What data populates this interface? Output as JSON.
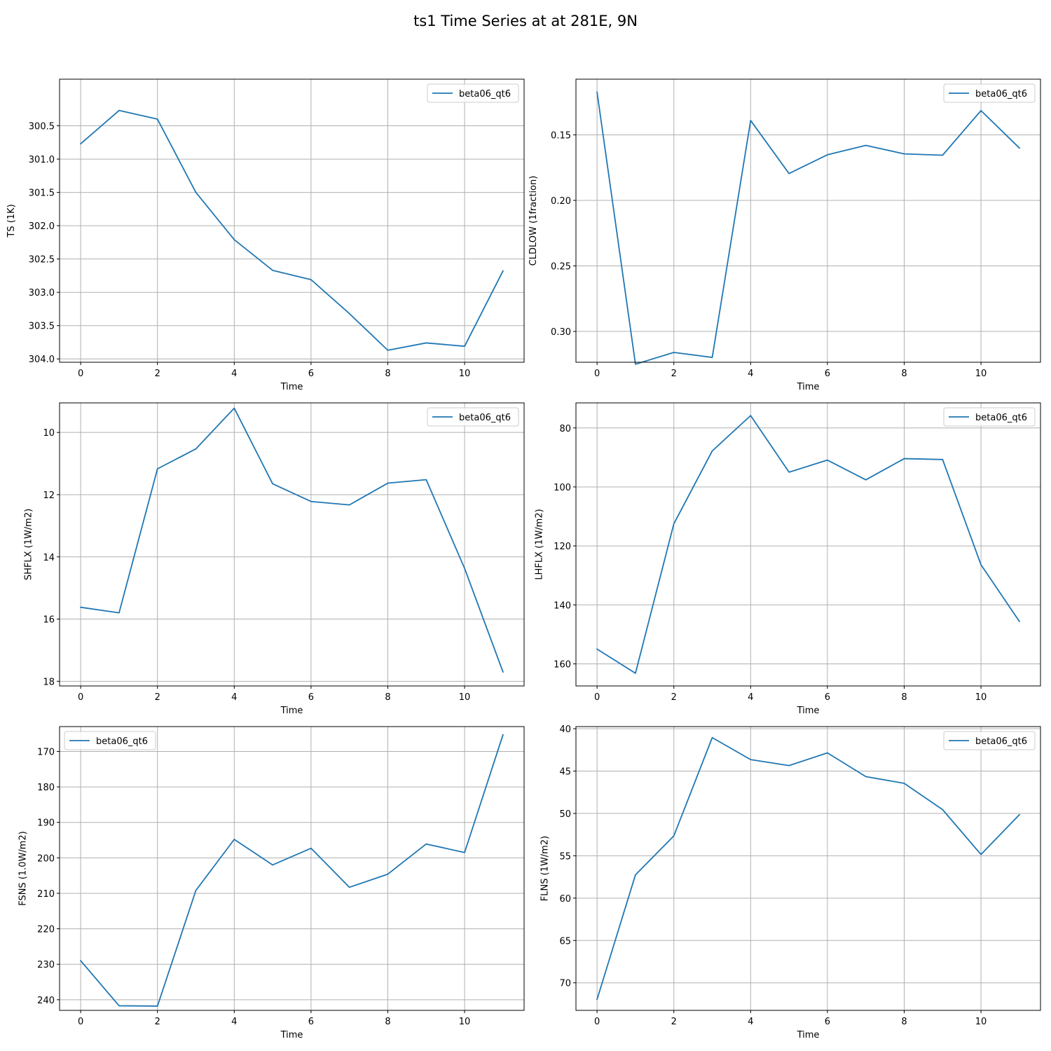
{
  "figure": {
    "title": "ts1 Time Series at at 281E, 9N"
  },
  "colors": {
    "series": "#1f77b4",
    "grid": "#b0b0b0"
  },
  "chart_data": [
    {
      "type": "line",
      "xlabel": "Time",
      "ylabel": "TS (1K)",
      "xlim": [
        -0.55,
        11.55
      ],
      "ylim": [
        304.05,
        299.8
      ],
      "y_inverted": true,
      "grid": true,
      "legend_position": "top-right",
      "xticks": [
        0,
        2,
        4,
        6,
        8,
        10
      ],
      "xtick_labels": [
        "0",
        "2",
        "4",
        "6",
        "8",
        "10"
      ],
      "yticks": [
        300.5,
        301.0,
        301.5,
        302.0,
        302.5,
        303.0,
        303.5,
        304.0
      ],
      "ytick_labels": [
        "300.5",
        "301.0",
        "301.5",
        "302.0",
        "302.5",
        "303.0",
        "303.5",
        "304.0"
      ],
      "series": [
        {
          "name": "beta06_qt6",
          "x": [
            0,
            1,
            2,
            3,
            4,
            5,
            6,
            7,
            8,
            9,
            10,
            11
          ],
          "values": [
            300.77,
            300.27,
            300.4,
            301.5,
            302.21,
            302.67,
            302.81,
            303.32,
            303.87,
            303.76,
            303.81,
            302.68
          ]
        }
      ]
    },
    {
      "type": "line",
      "xlabel": "Time",
      "ylabel": "CLDLOW (1fraction)",
      "xlim": [
        -0.55,
        11.55
      ],
      "ylim": [
        0.3235,
        0.1075
      ],
      "y_inverted": true,
      "grid": true,
      "legend_position": "top-right",
      "xticks": [
        0,
        2,
        4,
        6,
        8,
        10
      ],
      "xtick_labels": [
        "0",
        "2",
        "4",
        "6",
        "8",
        "10"
      ],
      "yticks": [
        0.15,
        0.2,
        0.25,
        0.3
      ],
      "ytick_labels": [
        "0.15",
        "0.20",
        "0.25",
        "0.30"
      ],
      "series": [
        {
          "name": "beta06_qt6",
          "x": [
            0,
            1,
            2,
            3,
            4,
            5,
            6,
            7,
            8,
            9,
            10,
            11
          ],
          "values": [
            0.1175,
            0.325,
            0.316,
            0.3198,
            0.139,
            0.1795,
            0.1652,
            0.158,
            0.1645,
            0.1655,
            0.1315,
            0.16
          ]
        }
      ]
    },
    {
      "type": "line",
      "xlabel": "Time",
      "ylabel": "SHFLX (1W/m2)",
      "xlim": [
        -0.55,
        11.55
      ],
      "ylim": [
        18.15,
        9.05
      ],
      "y_inverted": true,
      "grid": true,
      "legend_position": "top-right",
      "xticks": [
        0,
        2,
        4,
        6,
        8,
        10
      ],
      "xtick_labels": [
        "0",
        "2",
        "4",
        "6",
        "8",
        "10"
      ],
      "yticks": [
        10,
        12,
        14,
        16,
        18
      ],
      "ytick_labels": [
        "10",
        "12",
        "14",
        "16",
        "18"
      ],
      "series": [
        {
          "name": "beta06_qt6",
          "x": [
            0,
            1,
            2,
            3,
            4,
            5,
            6,
            7,
            8,
            9,
            10,
            11
          ],
          "values": [
            15.62,
            15.8,
            11.17,
            10.53,
            9.22,
            11.65,
            12.22,
            12.33,
            11.63,
            11.52,
            14.37,
            17.7
          ]
        }
      ]
    },
    {
      "type": "line",
      "xlabel": "Time",
      "ylabel": "LHFLX (1W/m2)",
      "xlim": [
        -0.55,
        11.55
      ],
      "ylim": [
        167.5,
        71.5
      ],
      "y_inverted": true,
      "grid": true,
      "legend_position": "top-right",
      "xticks": [
        0,
        2,
        4,
        6,
        8,
        10
      ],
      "xtick_labels": [
        "0",
        "2",
        "4",
        "6",
        "8",
        "10"
      ],
      "yticks": [
        80,
        100,
        120,
        140,
        160
      ],
      "ytick_labels": [
        "80",
        "100",
        "120",
        "140",
        "160"
      ],
      "series": [
        {
          "name": "beta06_qt6",
          "x": [
            0,
            1,
            2,
            3,
            4,
            5,
            6,
            7,
            8,
            9,
            10,
            11
          ],
          "values": [
            155.0,
            163.2,
            112.5,
            87.8,
            75.8,
            95.0,
            90.9,
            97.6,
            90.4,
            90.7,
            126.4,
            145.6
          ]
        }
      ]
    },
    {
      "type": "line",
      "xlabel": "Time",
      "ylabel": "FSNS (1.0W/m2)",
      "xlim": [
        -0.55,
        11.55
      ],
      "ylim": [
        243,
        163
      ],
      "y_inverted": true,
      "grid": true,
      "legend_position": "top-left",
      "xticks": [
        0,
        2,
        4,
        6,
        8,
        10
      ],
      "xtick_labels": [
        "0",
        "2",
        "4",
        "6",
        "8",
        "10"
      ],
      "yticks": [
        170,
        180,
        190,
        200,
        210,
        220,
        230,
        240
      ],
      "ytick_labels": [
        "170",
        "180",
        "190",
        "200",
        "210",
        "220",
        "230",
        "240"
      ],
      "series": [
        {
          "name": "beta06_qt6",
          "x": [
            0,
            1,
            2,
            3,
            4,
            5,
            6,
            7,
            8,
            9,
            10,
            11
          ],
          "values": [
            229.0,
            241.7,
            241.8,
            209.2,
            194.8,
            202.0,
            197.3,
            208.3,
            204.6,
            196.1,
            198.5,
            165.3
          ]
        }
      ]
    },
    {
      "type": "line",
      "xlabel": "Time",
      "ylabel": "FLNS (1W/m2)",
      "xlim": [
        -0.55,
        11.55
      ],
      "ylim": [
        73.25,
        39.75
      ],
      "y_inverted": true,
      "grid": true,
      "legend_position": "top-right",
      "xticks": [
        0,
        2,
        4,
        6,
        8,
        10
      ],
      "xtick_labels": [
        "0",
        "2",
        "4",
        "6",
        "8",
        "10"
      ],
      "yticks": [
        40,
        45,
        50,
        55,
        60,
        65,
        70
      ],
      "ytick_labels": [
        "40",
        "45",
        "50",
        "55",
        "60",
        "65",
        "70"
      ],
      "series": [
        {
          "name": "beta06_qt6",
          "x": [
            0,
            1,
            2,
            3,
            4,
            5,
            6,
            7,
            8,
            9,
            10,
            11
          ],
          "values": [
            71.95,
            57.25,
            52.65,
            41.05,
            43.65,
            44.35,
            42.85,
            45.65,
            46.45,
            49.55,
            54.85,
            50.15
          ]
        }
      ]
    }
  ]
}
